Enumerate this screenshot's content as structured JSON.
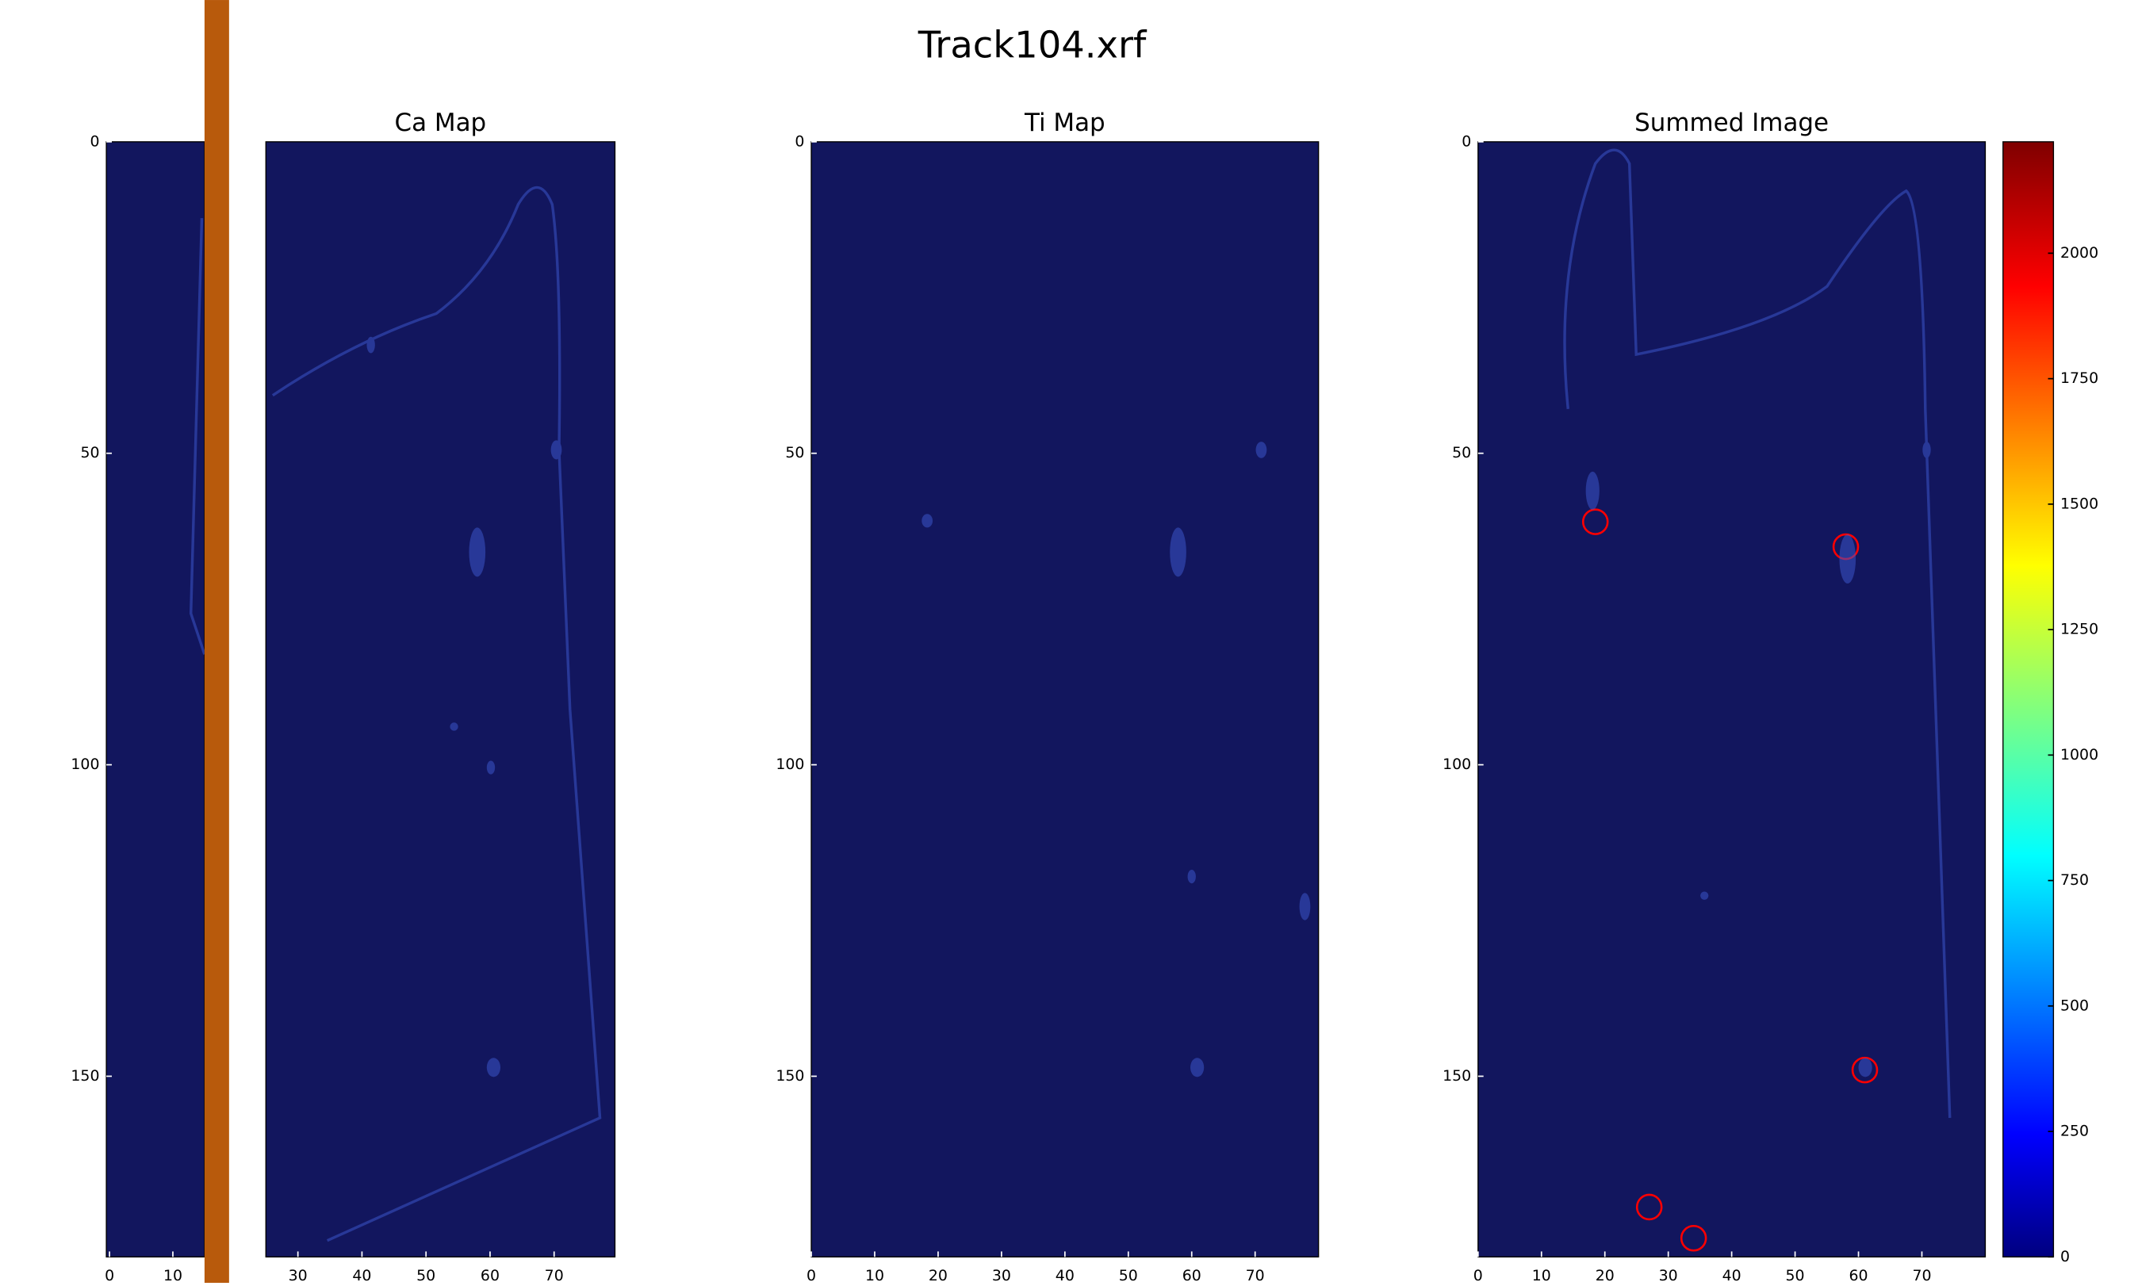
{
  "title": "Track104.xrf",
  "chart_data": [
    {
      "type": "heatmap",
      "xlim": [
        -0.5,
        15
      ],
      "ylim": [
        179,
        0
      ],
      "xticks": [
        0,
        10
      ],
      "yticks": [
        0,
        50,
        100,
        150
      ]
    },
    {
      "type": "heatmap",
      "title": "Ca Map",
      "xlim": [
        25,
        79.5
      ],
      "ylim": [
        179,
        0
      ],
      "xticks": [
        30,
        40,
        50,
        60,
        70
      ]
    },
    {
      "type": "heatmap",
      "title": "Ti Map",
      "xlim": [
        0,
        80
      ],
      "ylim": [
        179,
        0
      ],
      "xticks": [
        0,
        10,
        20,
        30,
        40,
        50,
        60,
        70
      ],
      "yticks": [
        0,
        50,
        100,
        150
      ]
    },
    {
      "type": "heatmap",
      "title": "Summed Image",
      "xlim": [
        0,
        80
      ],
      "ylim": [
        179,
        0
      ],
      "xticks": [
        0,
        10,
        20,
        30,
        40,
        50,
        60,
        70
      ],
      "yticks": [
        0,
        50,
        100,
        150
      ],
      "markers": {
        "color": "#ff0000",
        "x": [
          18.5,
          58,
          61,
          27,
          34
        ],
        "y": [
          61,
          65,
          149,
          171,
          176
        ]
      },
      "colorbar": {
        "colormap": "jet",
        "clim": [
          0,
          2222
        ],
        "ticks": [
          0,
          250,
          500,
          750,
          1000,
          1250,
          1500,
          1750,
          2000
        ]
      }
    }
  ]
}
